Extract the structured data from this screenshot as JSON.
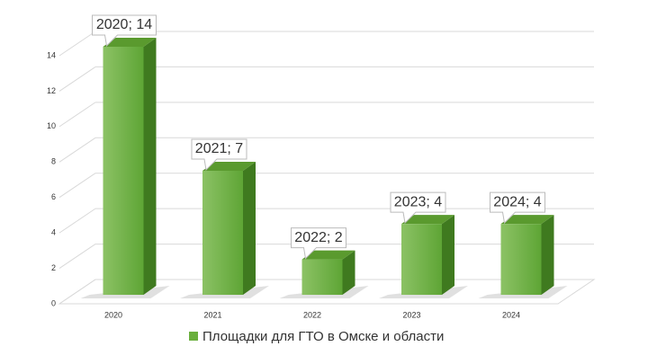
{
  "chart_data": {
    "type": "bar",
    "categories": [
      "2020",
      "2021",
      "2022",
      "2023",
      "2024"
    ],
    "series": [
      {
        "name": "Площадки для ГТО в Омске и области",
        "color": "#6aaf3d",
        "values": [
          14,
          7,
          2,
          4,
          4
        ],
        "value_labels": [
          "2020; 14",
          "2021; 7",
          "2022; 2",
          "2023; 4",
          "2024; 4"
        ]
      }
    ],
    "ylim": [
      0,
      14
    ],
    "yticks": [
      0,
      2,
      4,
      6,
      8,
      10,
      12,
      14
    ],
    "grid": true,
    "legend": "bottom"
  }
}
